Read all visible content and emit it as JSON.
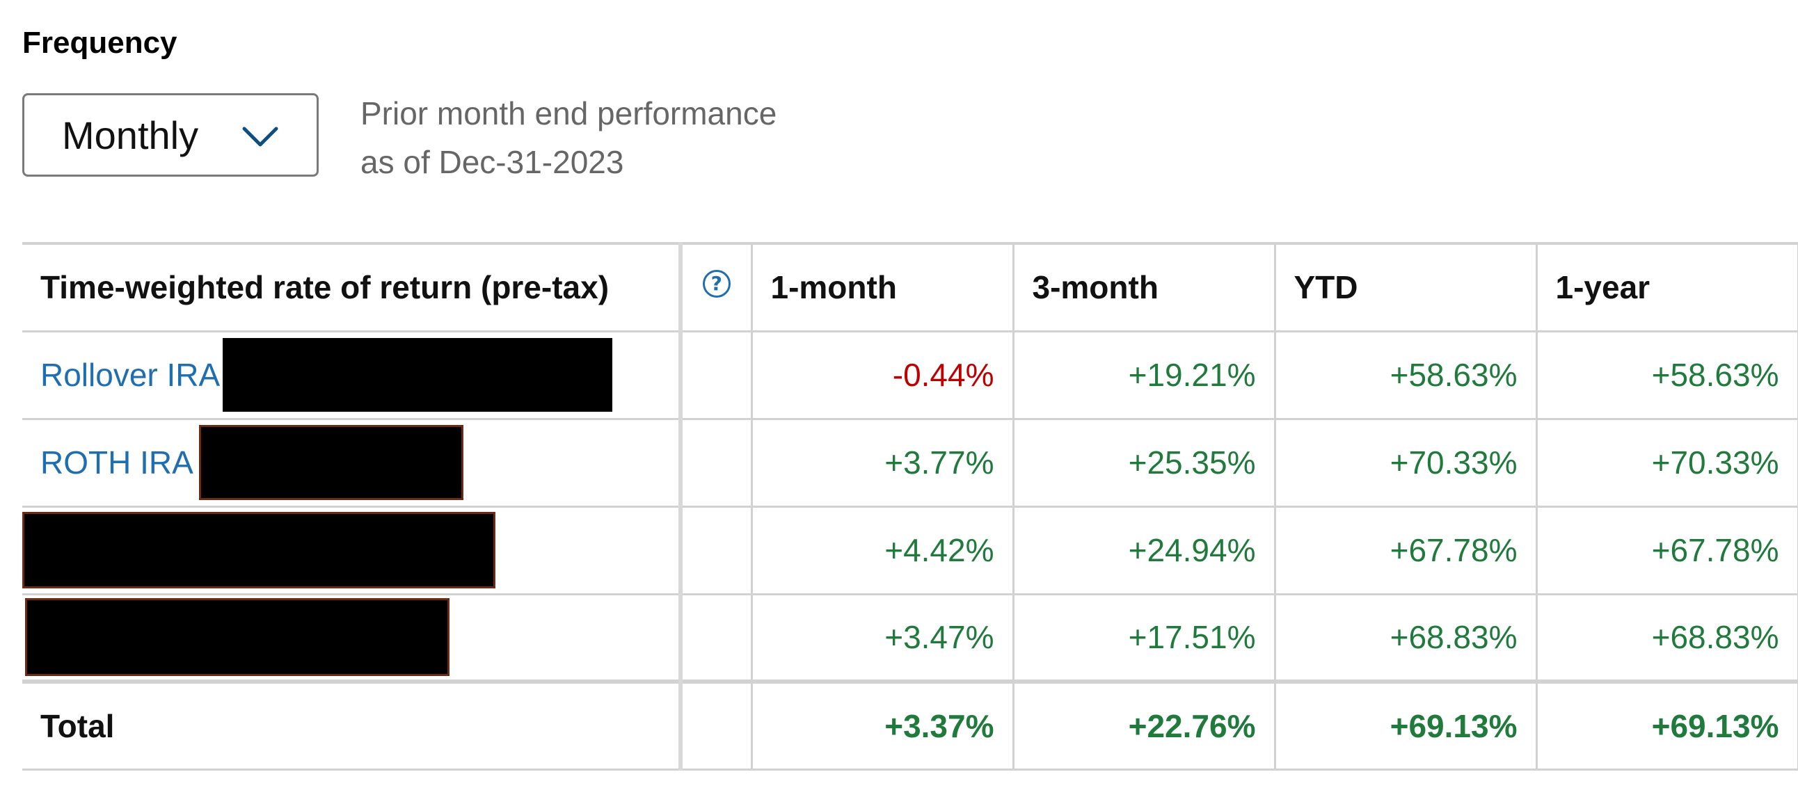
{
  "frequency": {
    "label": "Frequency",
    "selected": "Monthly",
    "dropdown_icon": "chevron-down-icon"
  },
  "performance_note": {
    "line1": "Prior month end performance",
    "line2": "as of Dec-31-2023"
  },
  "colors": {
    "positive": "#1f7a3c",
    "negative": "#c00000",
    "link": "#1f6fb0"
  },
  "table": {
    "headers": {
      "name": "Time-weighted rate of return (pre-tax)",
      "help_icon": "question-circle-icon",
      "help_glyph": "?",
      "c1": "1-month",
      "c2": "3-month",
      "c3": "YTD",
      "c4": "1-year"
    },
    "rows": [
      {
        "account": "Rollover IRA",
        "account_detail_redacted": true,
        "m1": "-0.44%",
        "m3": "+19.21%",
        "ytd": "+58.63%",
        "y1": "+58.63%"
      },
      {
        "account": "ROTH IRA",
        "account_detail_redacted": true,
        "m1": "+3.77%",
        "m3": "+25.35%",
        "ytd": "+70.33%",
        "y1": "+70.33%"
      },
      {
        "account": "",
        "account_detail_redacted": true,
        "m1": "+4.42%",
        "m3": "+24.94%",
        "ytd": "+67.78%",
        "y1": "+67.78%"
      },
      {
        "account": "",
        "account_detail_redacted": true,
        "m1": "+3.47%",
        "m3": "+17.51%",
        "ytd": "+68.83%",
        "y1": "+68.83%"
      }
    ],
    "total": {
      "label": "Total",
      "m1": "+3.37%",
      "m3": "+22.76%",
      "ytd": "+69.13%",
      "y1": "+69.13%"
    }
  }
}
